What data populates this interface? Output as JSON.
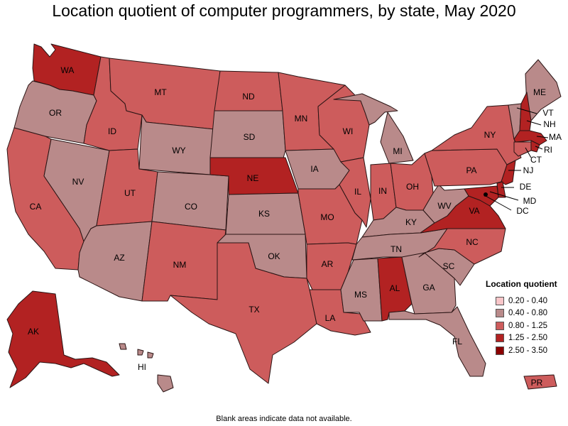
{
  "title": "Location quotient of computer programmers, by state, May 2020",
  "footnote": "Blank areas indicate data not available.",
  "legend": {
    "title": "Location quotient",
    "items": [
      {
        "range": "0.20 - 0.40",
        "color": "#f9c6c9"
      },
      {
        "range": "0.40 - 0.80",
        "color": "#b98a8a"
      },
      {
        "range": "0.80 - 1.25",
        "color": "#cd5c5c"
      },
      {
        "range": "1.25 - 2.50",
        "color": "#b22222"
      },
      {
        "range": "2.50 - 3.50",
        "color": "#8b0000"
      }
    ]
  },
  "states": [
    {
      "label": "WA",
      "bin": 3
    },
    {
      "label": "OR",
      "bin": 1
    },
    {
      "label": "CA",
      "bin": 2
    },
    {
      "label": "ID",
      "bin": 2
    },
    {
      "label": "NV",
      "bin": 1
    },
    {
      "label": "MT",
      "bin": 2
    },
    {
      "label": "WY",
      "bin": 1
    },
    {
      "label": "UT",
      "bin": 2
    },
    {
      "label": "CO",
      "bin": 1
    },
    {
      "label": "AZ",
      "bin": 1
    },
    {
      "label": "NM",
      "bin": 2
    },
    {
      "label": "ND",
      "bin": 2
    },
    {
      "label": "SD",
      "bin": 1
    },
    {
      "label": "NE",
      "bin": 3
    },
    {
      "label": "KS",
      "bin": 1
    },
    {
      "label": "OK",
      "bin": 1
    },
    {
      "label": "TX",
      "bin": 2
    },
    {
      "label": "MN",
      "bin": 2
    },
    {
      "label": "IA",
      "bin": 1
    },
    {
      "label": "MO",
      "bin": 2
    },
    {
      "label": "AR",
      "bin": 2
    },
    {
      "label": "LA",
      "bin": 2
    },
    {
      "label": "WI",
      "bin": 2
    },
    {
      "label": "IL",
      "bin": 2
    },
    {
      "label": "MI",
      "bin": 1
    },
    {
      "label": "IN",
      "bin": 2
    },
    {
      "label": "OH",
      "bin": 2
    },
    {
      "label": "KY",
      "bin": 1
    },
    {
      "label": "TN",
      "bin": 1
    },
    {
      "label": "MS",
      "bin": 1
    },
    {
      "label": "AL",
      "bin": 3
    },
    {
      "label": "GA",
      "bin": 1
    },
    {
      "label": "FL",
      "bin": 1
    },
    {
      "label": "SC",
      "bin": 1
    },
    {
      "label": "NC",
      "bin": 2
    },
    {
      "label": "VA",
      "bin": 3
    },
    {
      "label": "WV",
      "bin": 1
    },
    {
      "label": "PA",
      "bin": 2
    },
    {
      "label": "NY",
      "bin": 2
    },
    {
      "label": "ME",
      "bin": 1
    },
    {
      "label": "VT",
      "bin": 1
    },
    {
      "label": "NH",
      "bin": 3
    },
    {
      "label": "MA",
      "bin": 3
    },
    {
      "label": "RI",
      "bin": 3
    },
    {
      "label": "CT",
      "bin": 2
    },
    {
      "label": "NJ",
      "bin": 3
    },
    {
      "label": "DE",
      "bin": 3
    },
    {
      "label": "MD",
      "bin": 3
    },
    {
      "label": "DC",
      "bin": 4
    },
    {
      "label": "AK",
      "bin": 3
    },
    {
      "label": "HI",
      "bin": 1
    },
    {
      "label": "PR",
      "bin": 2
    }
  ]
}
